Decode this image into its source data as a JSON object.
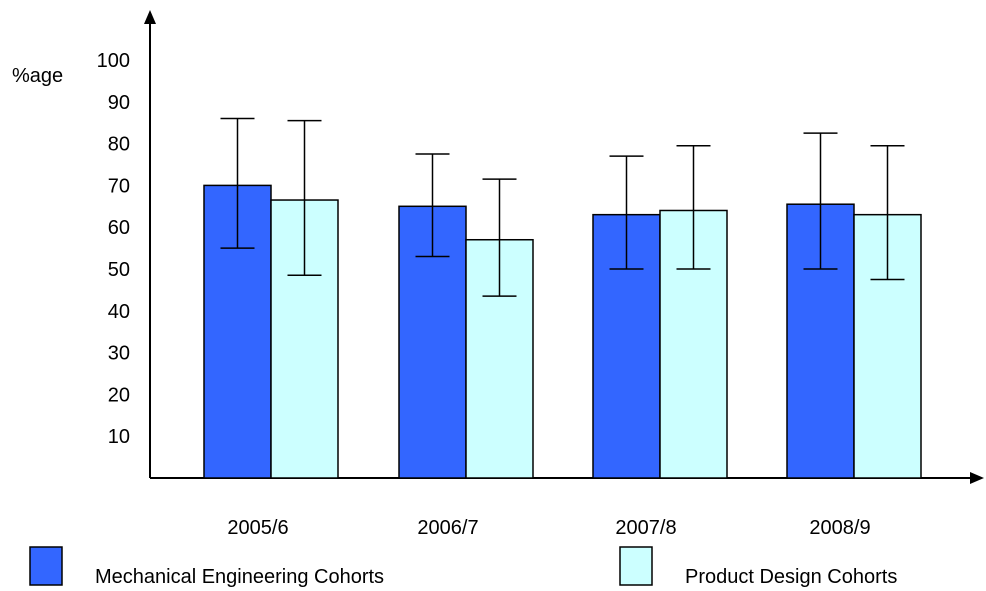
{
  "chart_data": {
    "type": "bar",
    "title": "",
    "xlabel": "",
    "ylabel": "%age",
    "ylim": [
      0,
      100
    ],
    "yticks": [
      10,
      20,
      30,
      40,
      50,
      60,
      70,
      80,
      90,
      100
    ],
    "grid": false,
    "legend_position": "bottom",
    "categories": [
      "2005/6",
      "2006/7",
      "2007/8",
      "2008/9"
    ],
    "series": [
      {
        "name": "Mechanical Engineering Cohorts",
        "color": "#3366ff",
        "values": [
          70,
          65,
          63,
          65.5
        ],
        "error_low": [
          55,
          53,
          50,
          50
        ],
        "error_high": [
          86,
          77.5,
          77,
          82.5
        ]
      },
      {
        "name": "Product Design Cohorts",
        "color": "#ccffff",
        "values": [
          66.5,
          57,
          64,
          63
        ],
        "error_low": [
          48.5,
          43.5,
          50,
          47.5
        ],
        "error_high": [
          85.5,
          71.5,
          79.5,
          79.5
        ]
      }
    ]
  }
}
